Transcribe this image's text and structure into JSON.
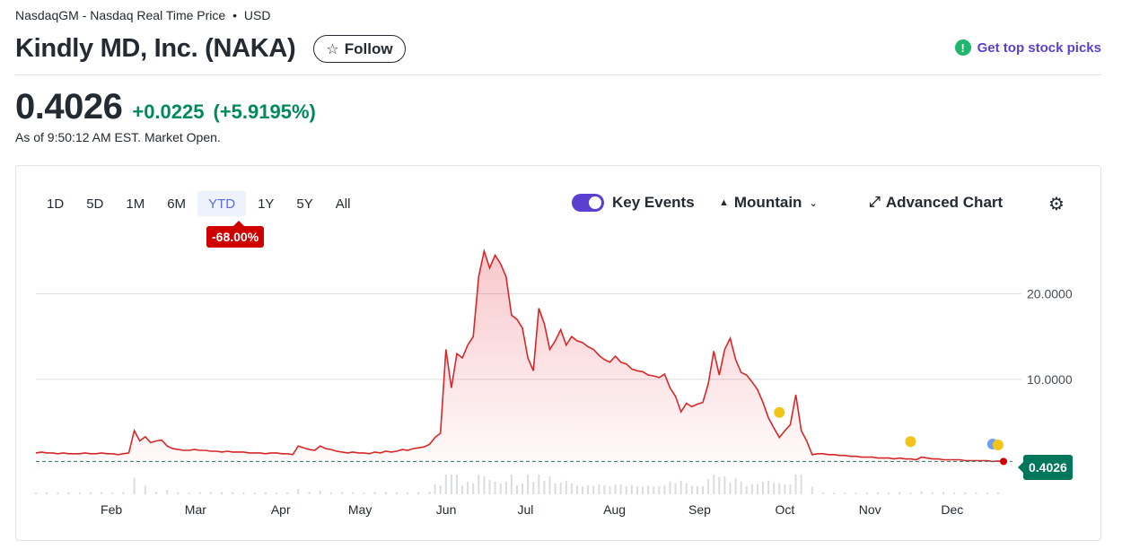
{
  "header": {
    "exchange": "NasdaqGM - Nasdaq Real Time Price",
    "dot": "•",
    "currency": "USD",
    "title": "Kindly MD, Inc. (NAKA)",
    "follow_label": "Follow",
    "top_picks_label": "Get top stock picks"
  },
  "quote": {
    "price": "0.4026",
    "change": "+0.0225",
    "change_pct": "(+5.9195%)",
    "as_of": "As of 9:50:12 AM EST. Market Open."
  },
  "chart_controls": {
    "ranges": [
      "1D",
      "5D",
      "1M",
      "6M",
      "YTD",
      "1Y",
      "5Y",
      "All"
    ],
    "active_range": "YTD",
    "ytd_change": "-68.00%",
    "key_events_label": "Key Events",
    "key_events_on": true,
    "mountain_label": "Mountain",
    "advanced_label": "Advanced Chart"
  },
  "colors": {
    "line": "#d62828",
    "positive": "#008a5a",
    "accent": "#5b3fd0",
    "event_dot": "#f2c417",
    "last_price_bg": "#00775a"
  },
  "chart_data": {
    "type": "area",
    "ylim": [
      -0.5,
      25.5
    ],
    "y_ticks": [
      10,
      20
    ],
    "y_tick_labels": [
      "10.0000",
      "20.0000"
    ],
    "x_labels": [
      "Feb",
      "Mar",
      "Apr",
      "May",
      "Jun",
      "Jul",
      "Aug",
      "Sep",
      "Oct",
      "Nov",
      "Dec"
    ],
    "last_price_label": "0.4026",
    "series": [
      {
        "values": [
          1.4,
          1.5,
          1.4,
          1.4,
          1.3,
          1.4,
          1.3,
          1.3,
          1.3,
          1.4,
          1.3,
          1.3,
          1.4,
          1.3,
          1.3,
          1.2,
          1.3,
          1.4,
          4.0,
          2.8,
          3.3,
          2.6,
          2.8,
          2.9,
          2.2,
          1.9,
          1.8,
          1.7,
          1.7,
          1.8,
          1.7,
          1.7,
          1.6,
          1.6,
          1.5,
          1.6,
          1.5,
          1.5,
          1.5,
          1.4,
          1.4,
          1.4,
          1.3,
          1.4,
          1.4,
          1.3,
          1.3,
          1.2,
          2.2,
          2.0,
          1.8,
          1.7,
          2.2,
          1.9,
          1.8,
          1.6,
          1.5,
          1.4,
          1.5,
          1.4,
          1.4,
          1.3,
          1.5,
          1.4,
          1.6,
          1.5,
          1.6,
          1.8,
          1.7,
          1.9,
          2.0,
          2.1,
          2.4,
          3.2,
          3.7,
          13.5,
          9.0,
          13.0,
          12.5,
          14.0,
          15.0,
          22.0,
          25.0,
          23.0,
          24.5,
          23.5,
          22.0,
          17.5,
          17.0,
          16.0,
          12.5,
          11.0,
          18.3,
          16.5,
          13.5,
          14.5,
          15.8,
          14.0,
          15.0,
          14.5,
          14.3,
          13.8,
          13.5,
          12.8,
          12.3,
          12.0,
          12.7,
          12.0,
          11.8,
          11.2,
          11.0,
          10.9,
          10.5,
          10.4,
          10.2,
          10.6,
          9.0,
          8.0,
          6.2,
          7.2,
          6.8,
          7.1,
          7.3,
          9.5,
          13.3,
          10.5,
          13.5,
          14.8,
          12.3,
          10.8,
          10.5,
          9.7,
          8.8,
          7.3,
          5.5,
          4.3,
          3.2,
          4.0,
          4.7,
          8.2,
          4.0,
          2.8,
          1.2,
          1.3,
          1.3,
          1.2,
          1.2,
          1.1,
          1.1,
          1.0,
          1.0,
          0.9,
          0.9,
          0.9,
          0.8,
          0.8,
          0.8,
          0.7,
          0.8,
          0.7,
          0.7,
          0.6,
          0.9,
          0.8,
          0.7,
          0.7,
          0.6,
          0.6,
          0.6,
          0.6,
          0.5,
          0.5,
          0.5,
          0.5,
          0.5,
          0.4,
          0.45,
          0.4026
        ]
      }
    ],
    "events": [
      {
        "index": 136,
        "value": 5.5
      },
      {
        "index": 160,
        "value": 2.1
      },
      {
        "index": 175,
        "value": 1.8
      },
      {
        "index": 176,
        "value": 1.7
      }
    ],
    "grid": true
  }
}
